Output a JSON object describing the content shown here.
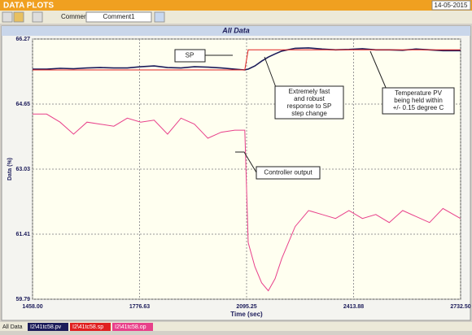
{
  "ui": {
    "app_title": "DATA PLOTS",
    "date": "14-05-2015",
    "comment_label": "Comment",
    "comment_value": "Comment1",
    "bottom_tab": "All Data"
  },
  "chart_data": {
    "type": "line",
    "title": "All Data",
    "x_label": "Time (sec)",
    "y_label": "Data (%)",
    "x": [
      1458,
      1500,
      1540,
      1580,
      1620,
      1660,
      1700,
      1740,
      1780,
      1820,
      1860,
      1900,
      1940,
      1980,
      2020,
      2060,
      2090,
      2100,
      2120,
      2140,
      2160,
      2180,
      2200,
      2240,
      2280,
      2320,
      2360,
      2400,
      2440,
      2480,
      2520,
      2560,
      2600,
      2640,
      2680,
      2732
    ],
    "series": [
      {
        "name": "I2\\41tc58.pv",
        "color": "#1c1c5a",
        "values": [
          65.52,
          65.52,
          65.54,
          65.53,
          65.55,
          65.56,
          65.55,
          65.55,
          65.58,
          65.6,
          65.56,
          65.55,
          65.58,
          65.57,
          65.55,
          65.52,
          65.5,
          65.52,
          65.6,
          65.72,
          65.82,
          65.9,
          65.97,
          66.04,
          66.05,
          66.02,
          66.0,
          66.01,
          66.03,
          66.0,
          66.0,
          65.99,
          66.02,
          66.0,
          65.98,
          65.98
        ]
      },
      {
        "name": "I2\\41tc58.sp",
        "color": "#e02020",
        "values": [
          65.5,
          65.5,
          65.5,
          65.5,
          65.5,
          65.5,
          65.5,
          65.5,
          65.5,
          65.5,
          65.5,
          65.5,
          65.5,
          65.5,
          65.5,
          65.5,
          65.5,
          66.0,
          66.0,
          66.0,
          66.0,
          66.0,
          66.0,
          66.0,
          66.0,
          66.0,
          66.0,
          66.0,
          66.0,
          66.0,
          66.0,
          66.0,
          66.0,
          66.0,
          66.0,
          66.0
        ]
      },
      {
        "name": "I2\\41tc58.op",
        "color": "#e8408a",
        "values": [
          64.4,
          64.4,
          64.2,
          63.9,
          64.2,
          64.15,
          64.1,
          64.3,
          64.2,
          64.25,
          63.9,
          64.3,
          64.15,
          63.8,
          63.95,
          64.0,
          64.0,
          61.2,
          60.6,
          60.2,
          60.0,
          60.3,
          60.8,
          61.6,
          62.0,
          61.9,
          61.8,
          62.0,
          61.8,
          61.9,
          61.7,
          62.0,
          61.85,
          61.7,
          62.05,
          61.8
        ]
      }
    ],
    "xlim": [
      1458,
      2732.5
    ],
    "xticks": [
      {
        "value": 1458,
        "label": "1458.00"
      },
      1776.63,
      2095.25,
      2413.88,
      {
        "value": 2732.5,
        "label": "2732.50"
      }
    ],
    "ylim": [
      59.79,
      66.27
    ],
    "yticks": [
      66.27,
      64.65,
      63.03,
      61.41,
      59.79
    ],
    "grid": true,
    "annotations": [
      [
        "SP"
      ],
      [
        "Extremely fast",
        "and robust",
        "response to SP",
        "step change"
      ],
      [
        "Temperature PV",
        "being held within",
        "+/- 0.15 degree C"
      ],
      [
        "Controller output"
      ]
    ]
  }
}
